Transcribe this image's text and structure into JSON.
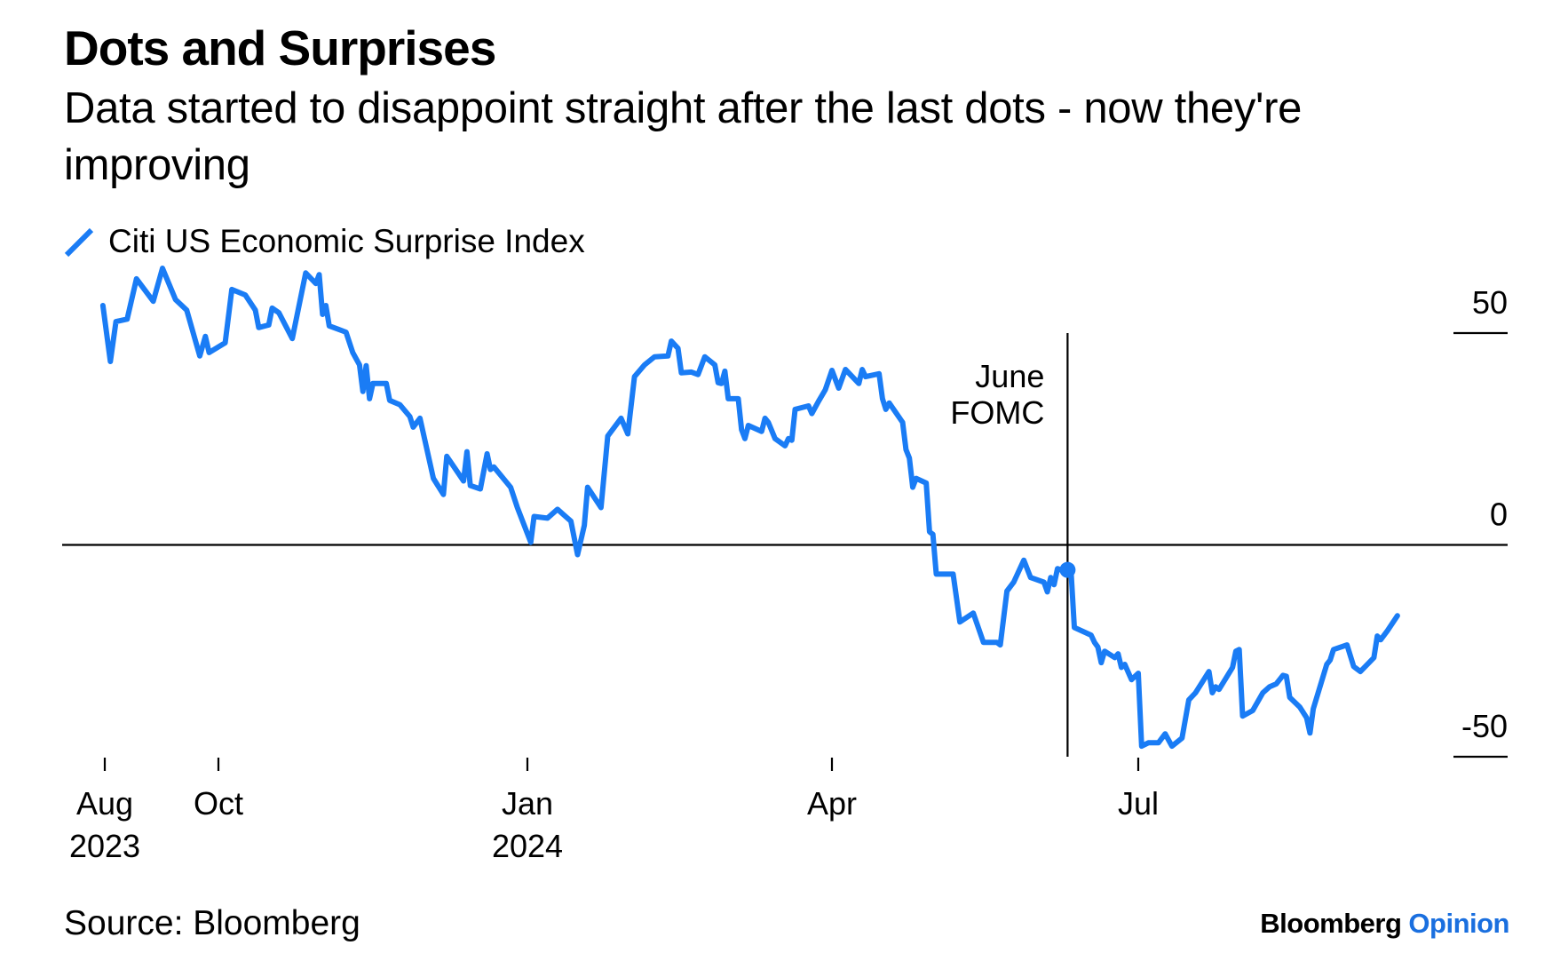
{
  "header": {
    "title": "Dots and Surprises",
    "subtitle": "Data started to disappoint straight after the last dots - now they're improving"
  },
  "footer": {
    "source": "Source: Bloomberg",
    "logo_primary": "Bloomberg",
    "logo_secondary": "Opinion"
  },
  "colors": {
    "series": "#1a7cf5",
    "logo_accent": "#1a6fdf",
    "axis": "#000000"
  },
  "chart_data": {
    "type": "line",
    "title": "Dots and Surprises",
    "subtitle": "Data started to disappoint straight after the last dots - now they're improving",
    "xlabel": "",
    "ylabel": "",
    "ylim": [
      -50,
      50
    ],
    "y_ticks": [
      {
        "value": 50,
        "label": "50"
      },
      {
        "value": 0,
        "label": "0"
      },
      {
        "value": -50,
        "label": "-50"
      }
    ],
    "y_axis_side": "right",
    "x_ticks": [
      {
        "date": "2023-08-01",
        "label": "Aug",
        "sublabel": "2023"
      },
      {
        "date": "2023-10-01",
        "label": "Oct",
        "sublabel": ""
      },
      {
        "date": "2024-01-01",
        "label": "Jan",
        "sublabel": "2024"
      },
      {
        "date": "2024-04-01",
        "label": "Apr",
        "sublabel": ""
      },
      {
        "date": "2024-07-01",
        "label": "Jul",
        "sublabel": ""
      }
    ],
    "grid": false,
    "zero_line": true,
    "legend": {
      "position": "top-left",
      "entries": [
        {
          "name": "Citi US Economic Surprise Index",
          "marker": "line"
        }
      ]
    },
    "annotations": [
      {
        "type": "vertical-line",
        "date": "2024-06-10",
        "label_lines": [
          "June",
          "FOMC"
        ],
        "from": -50,
        "to": 50,
        "marker_value": -5.9
      }
    ],
    "series": [
      {
        "name": "Citi US Economic Surprise Index",
        "color": "#1a7cf5",
        "points": [
          [
            "2023-07-31",
            56.5
          ],
          [
            "2023-08-04",
            43.3
          ],
          [
            "2023-08-07",
            52.7
          ],
          [
            "2023-08-13",
            53.3
          ],
          [
            "2023-08-18",
            62.8
          ],
          [
            "2023-08-27",
            57.5
          ],
          [
            "2023-09-01",
            65.3
          ],
          [
            "2023-09-08",
            57.9
          ],
          [
            "2023-09-14",
            55.4
          ],
          [
            "2023-09-21",
            44.6
          ],
          [
            "2023-09-24",
            49.2
          ],
          [
            "2023-09-26",
            45.4
          ],
          [
            "2023-10-03",
            47.7
          ],
          [
            "2023-10-05",
            60.3
          ],
          [
            "2023-10-09",
            59.0
          ],
          [
            "2023-10-12",
            55.4
          ],
          [
            "2023-10-13",
            51.3
          ],
          [
            "2023-10-16",
            51.9
          ],
          [
            "2023-10-17",
            55.9
          ],
          [
            "2023-10-19",
            54.8
          ],
          [
            "2023-10-23",
            48.7
          ],
          [
            "2023-10-27",
            64.2
          ],
          [
            "2023-10-30",
            61.7
          ],
          [
            "2023-10-31",
            63.8
          ],
          [
            "2023-11-01",
            54.4
          ],
          [
            "2023-11-02",
            56.5
          ],
          [
            "2023-11-03",
            51.7
          ],
          [
            "2023-11-08",
            50.2
          ],
          [
            "2023-11-10",
            45.4
          ],
          [
            "2023-11-12",
            42.5
          ],
          [
            "2023-11-13",
            36.2
          ],
          [
            "2023-11-14",
            42.3
          ],
          [
            "2023-11-15",
            34.5
          ],
          [
            "2023-11-16",
            38.1
          ],
          [
            "2023-11-20",
            38.1
          ],
          [
            "2023-11-21",
            34.1
          ],
          [
            "2023-11-24",
            33.1
          ],
          [
            "2023-11-27",
            30.3
          ],
          [
            "2023-11-28",
            27.8
          ],
          [
            "2023-11-30",
            29.9
          ],
          [
            "2023-12-04",
            15.7
          ],
          [
            "2023-12-07",
            11.9
          ],
          [
            "2023-12-08",
            20.9
          ],
          [
            "2023-12-13",
            15.1
          ],
          [
            "2023-12-14",
            22.0
          ],
          [
            "2023-12-15",
            14.0
          ],
          [
            "2023-12-18",
            13.2
          ],
          [
            "2023-12-20",
            21.5
          ],
          [
            "2023-12-21",
            17.8
          ],
          [
            "2023-12-22",
            18.4
          ],
          [
            "2023-12-27",
            13.6
          ],
          [
            "2023-12-29",
            8.8
          ],
          [
            "2024-01-02",
            0.6
          ],
          [
            "2024-01-03",
            6.7
          ],
          [
            "2024-01-07",
            6.3
          ],
          [
            "2024-01-10",
            8.4
          ],
          [
            "2024-01-14",
            5.6
          ],
          [
            "2024-01-16",
            -2.3
          ],
          [
            "2024-01-18",
            4.6
          ],
          [
            "2024-01-19",
            13.6
          ],
          [
            "2024-01-23",
            8.8
          ],
          [
            "2024-01-25",
            25.7
          ],
          [
            "2024-01-29",
            29.9
          ],
          [
            "2024-01-31",
            26.2
          ],
          [
            "2024-02-02",
            39.7
          ],
          [
            "2024-02-05",
            42.5
          ],
          [
            "2024-02-08",
            44.4
          ],
          [
            "2024-02-12",
            44.6
          ],
          [
            "2024-02-13",
            48.1
          ],
          [
            "2024-02-15",
            46.4
          ],
          [
            "2024-02-16",
            40.6
          ],
          [
            "2024-02-19",
            40.8
          ],
          [
            "2024-02-21",
            40.2
          ],
          [
            "2024-02-23",
            44.4
          ],
          [
            "2024-02-26",
            42.5
          ],
          [
            "2024-02-27",
            38.3
          ],
          [
            "2024-02-28",
            38.1
          ],
          [
            "2024-02-29",
            41.0
          ],
          [
            "2024-03-01",
            34.5
          ],
          [
            "2024-03-04",
            34.5
          ],
          [
            "2024-03-05",
            27.2
          ],
          [
            "2024-03-06",
            25.1
          ],
          [
            "2024-03-07",
            28.2
          ],
          [
            "2024-03-11",
            26.8
          ],
          [
            "2024-03-12",
            29.9
          ],
          [
            "2024-03-13",
            28.9
          ],
          [
            "2024-03-15",
            25.1
          ],
          [
            "2024-03-18",
            23.4
          ],
          [
            "2024-03-19",
            25.1
          ],
          [
            "2024-03-20",
            24.7
          ],
          [
            "2024-03-21",
            32.0
          ],
          [
            "2024-03-25",
            32.8
          ],
          [
            "2024-03-26",
            31.0
          ],
          [
            "2024-03-28",
            33.9
          ],
          [
            "2024-03-30",
            36.6
          ],
          [
            "2024-04-01",
            41.2
          ],
          [
            "2024-04-03",
            37.0
          ],
          [
            "2024-04-05",
            41.4
          ],
          [
            "2024-04-09",
            38.1
          ],
          [
            "2024-04-10",
            41.4
          ],
          [
            "2024-04-11",
            39.7
          ],
          [
            "2024-04-15",
            40.4
          ],
          [
            "2024-04-16",
            34.5
          ],
          [
            "2024-04-17",
            32.0
          ],
          [
            "2024-04-18",
            33.5
          ],
          [
            "2024-04-22",
            28.9
          ],
          [
            "2024-04-23",
            22.5
          ],
          [
            "2024-04-24",
            20.5
          ],
          [
            "2024-04-25",
            13.6
          ],
          [
            "2024-04-26",
            15.7
          ],
          [
            "2024-04-29",
            14.6
          ],
          [
            "2024-04-30",
            3.1
          ],
          [
            "2024-05-01",
            2.5
          ],
          [
            "2024-05-02",
            -6.9
          ],
          [
            "2024-05-07",
            -6.9
          ],
          [
            "2024-05-09",
            -18.2
          ],
          [
            "2024-05-13",
            -16.1
          ],
          [
            "2024-05-16",
            -23.0
          ],
          [
            "2024-05-20",
            -23.0
          ],
          [
            "2024-05-21",
            -23.6
          ],
          [
            "2024-05-23",
            -10.9
          ],
          [
            "2024-05-25",
            -8.8
          ],
          [
            "2024-05-28",
            -3.6
          ],
          [
            "2024-05-30",
            -7.7
          ],
          [
            "2024-06-03",
            -8.8
          ],
          [
            "2024-06-04",
            -11.1
          ],
          [
            "2024-06-05",
            -7.7
          ],
          [
            "2024-06-06",
            -9.4
          ],
          [
            "2024-06-07",
            -5.6
          ],
          [
            "2024-06-08",
            -5.9
          ],
          [
            "2024-06-11",
            -5.9
          ],
          [
            "2024-06-12",
            -19.5
          ],
          [
            "2024-06-17",
            -21.3
          ],
          [
            "2024-06-18",
            -23.0
          ],
          [
            "2024-06-19",
            -24.1
          ],
          [
            "2024-06-20",
            -27.8
          ],
          [
            "2024-06-21",
            -25.1
          ],
          [
            "2024-06-24",
            -26.6
          ],
          [
            "2024-06-25",
            -25.7
          ],
          [
            "2024-06-26",
            -28.9
          ],
          [
            "2024-06-27",
            -28.2
          ],
          [
            "2024-06-29",
            -31.8
          ],
          [
            "2024-07-01",
            -30.3
          ],
          [
            "2024-07-02",
            -47.5
          ],
          [
            "2024-07-04",
            -46.7
          ],
          [
            "2024-07-07",
            -46.7
          ],
          [
            "2024-07-09",
            -44.6
          ],
          [
            "2024-07-11",
            -47.5
          ],
          [
            "2024-07-14",
            -45.6
          ],
          [
            "2024-07-16",
            -36.6
          ],
          [
            "2024-07-18",
            -34.9
          ],
          [
            "2024-07-22",
            -29.9
          ],
          [
            "2024-07-23",
            -34.9
          ],
          [
            "2024-07-24",
            -33.5
          ],
          [
            "2024-07-25",
            -34.1
          ],
          [
            "2024-07-29",
            -28.9
          ],
          [
            "2024-07-30",
            -25.1
          ],
          [
            "2024-07-31",
            -24.7
          ],
          [
            "2024-08-01",
            -40.4
          ],
          [
            "2024-08-04",
            -39.1
          ],
          [
            "2024-08-07",
            -34.9
          ],
          [
            "2024-08-09",
            -33.5
          ],
          [
            "2024-08-11",
            -32.8
          ],
          [
            "2024-08-13",
            -30.8
          ],
          [
            "2024-08-14",
            -31.0
          ],
          [
            "2024-08-15",
            -36.0
          ],
          [
            "2024-08-18",
            -38.3
          ],
          [
            "2024-08-20",
            -40.8
          ],
          [
            "2024-08-21",
            -44.4
          ],
          [
            "2024-08-22",
            -38.7
          ],
          [
            "2024-08-26",
            -28.2
          ],
          [
            "2024-08-27",
            -27.2
          ],
          [
            "2024-08-28",
            -24.7
          ],
          [
            "2024-09-01",
            -23.6
          ],
          [
            "2024-09-03",
            -28.7
          ],
          [
            "2024-09-05",
            -29.9
          ],
          [
            "2024-09-09",
            -26.6
          ],
          [
            "2024-09-10",
            -21.5
          ],
          [
            "2024-09-11",
            -22.4
          ],
          [
            "2024-09-13",
            -20.3
          ],
          [
            "2024-09-16",
            -16.7
          ]
        ]
      }
    ]
  }
}
